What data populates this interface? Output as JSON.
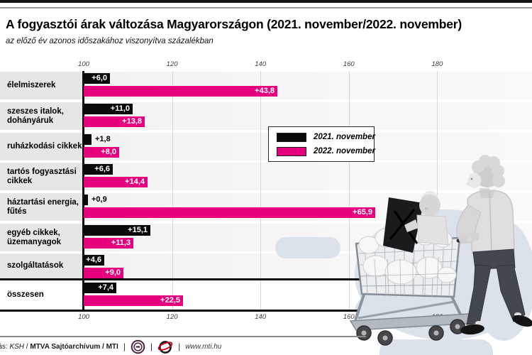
{
  "header": {
    "title": "A fogyasztói árak változása Magyarországon (2021. november/2022. november)",
    "subtitle": "az előző év azonos időszakához viszonyítva százalékban"
  },
  "chart_data": {
    "type": "bar",
    "orientation": "horizontal",
    "title": "A fogyasztói árak változása Magyarországon (2021. november/2022. november)",
    "subtitle": "az előző év azonos időszakához viszonyítva százalékban",
    "categories": [
      [
        "élelmiszerek"
      ],
      [
        "szeszes italok,",
        "dohányáruk"
      ],
      [
        "ruházkodási cikkek"
      ],
      [
        "tartós fogyasztási",
        "cikkek"
      ],
      [
        "háztartási energia,",
        "fűtés"
      ],
      [
        "egyéb cikkek,",
        "üzemanyagok"
      ],
      [
        "szolgáltatások"
      ],
      [
        "összesen"
      ]
    ],
    "series": [
      {
        "name": "2021. november",
        "color": "#0a0a0a",
        "values": [
          6.0,
          11.0,
          1.8,
          6.6,
          0.9,
          15.1,
          4.6,
          7.4
        ],
        "labels": [
          "+6,0",
          "+11,0",
          "+1,8",
          "+6,6",
          "+0,9",
          "+15,1",
          "+4,6",
          "+7,4"
        ]
      },
      {
        "name": "2022. november",
        "color": "#e6007e",
        "values": [
          43.8,
          13.8,
          8.0,
          14.4,
          65.9,
          11.3,
          9.0,
          22.5
        ],
        "labels": [
          "+43,8",
          "+13,8",
          "+8,0",
          "+14,4",
          "+65,9",
          "+11,3",
          "+9,0",
          "+22,5"
        ]
      }
    ],
    "x_axis": {
      "baseline_value": 100,
      "min": 100,
      "max": 190,
      "tick_values": [
        100,
        120,
        140,
        160,
        180
      ],
      "tick_labels": [
        "100",
        "120",
        "140",
        "160",
        "180"
      ],
      "tick_label_position": "top and bottom",
      "gridlines": true
    },
    "legend": {
      "position": "center-right",
      "items": [
        "2021. november",
        "2022. november"
      ]
    }
  },
  "footer": {
    "source_prefix": "Forrás: ",
    "source_ksh": "KSH",
    "source_separator": " / ",
    "source_rest": "MTVA Sajtóarchívum / MTI",
    "pipe": "|",
    "website": "www.mti.hu",
    "icons": [
      {
        "name": "mtva-logo-icon"
      },
      {
        "name": "mti-logo-icon"
      }
    ]
  },
  "colors": {
    "accent_magenta": "#e6007e",
    "bar_black": "#0a0a0a",
    "band_gray": "#e6e6e6",
    "blob_blue_gray": "#dbe2ea"
  }
}
